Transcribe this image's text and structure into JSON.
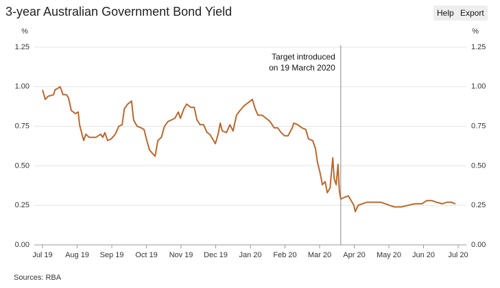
{
  "ui": {
    "buttons": [
      "Help",
      "Export"
    ]
  },
  "chart_data": {
    "type": "line",
    "title": "3-year Australian Government Bond Yield",
    "y_unit": "%",
    "source": "Sources: RBA",
    "xlim": [
      0,
      12
    ],
    "xticks": [
      {
        "value": 0,
        "label": "Jul 19"
      },
      {
        "value": 1,
        "label": "Aug 19"
      },
      {
        "value": 2,
        "label": "Sep 19"
      },
      {
        "value": 3,
        "label": "Oct 19"
      },
      {
        "value": 4,
        "label": "Nov 19"
      },
      {
        "value": 5,
        "label": "Dec 19"
      },
      {
        "value": 6,
        "label": "Jan 20"
      },
      {
        "value": 7,
        "label": "Feb 20"
      },
      {
        "value": 8,
        "label": "Mar 20"
      },
      {
        "value": 9,
        "label": "Apr 20"
      },
      {
        "value": 10,
        "label": "May 20"
      },
      {
        "value": 11,
        "label": "Jun 20"
      },
      {
        "value": 12,
        "label": "Jul 20"
      }
    ],
    "ylim": [
      0,
      1.25
    ],
    "yticks": [
      {
        "value": 0,
        "label": "0.00"
      },
      0.25,
      {
        "value": 0.5,
        "label": "0.50"
      },
      0.75,
      {
        "value": 1,
        "label": "1.00"
      },
      1.25
    ],
    "grid": true,
    "annotations": [
      {
        "text": [
          "Target introduced",
          "on 19 March 2020"
        ],
        "x": 8.61
      }
    ],
    "series": [
      {
        "color": "#b8672e",
        "x": [
          0,
          0.08,
          0.16,
          0.32,
          0.36,
          0.44,
          0.51,
          0.59,
          0.69,
          0.75,
          0.83,
          0.95,
          1.03,
          1.07,
          1.15,
          1.19,
          1.25,
          1.35,
          1.54,
          1.68,
          1.74,
          1.8,
          1.88,
          1.98,
          2.1,
          2.2,
          2.3,
          2.36,
          2.46,
          2.57,
          2.63,
          2.73,
          2.85,
          2.93,
          3.01,
          3.09,
          3.17,
          3.25,
          3.33,
          3.43,
          3.52,
          3.62,
          3.72,
          3.82,
          3.92,
          3.98,
          4.08,
          4.16,
          4.28,
          4.38,
          4.46,
          4.55,
          4.65,
          4.75,
          4.83,
          4.91,
          4.99,
          5.07,
          5.13,
          5.19,
          5.31,
          5.41,
          5.5,
          5.6,
          5.7,
          5.82,
          5.94,
          6.06,
          6.14,
          6.22,
          6.34,
          6.46,
          6.57,
          6.69,
          6.79,
          6.89,
          6.99,
          7.09,
          7.21,
          7.25,
          7.37,
          7.49,
          7.6,
          7.68,
          7.8,
          7.88,
          7.94,
          8.02,
          8.08,
          8.16,
          8.22,
          8.3,
          8.38,
          8.42,
          8.48,
          8.53,
          8.57,
          8.61,
          8.71,
          8.83,
          8.91,
          8.99,
          9.03,
          9.11,
          9.23,
          9.37,
          9.56,
          9.76,
          9.9,
          10.02,
          10.16,
          10.36,
          10.55,
          10.75,
          10.95,
          11.09,
          11.25,
          11.37,
          11.54,
          11.68,
          11.8,
          11.92
        ],
        "values": [
          0.98,
          0.92,
          0.94,
          0.95,
          0.98,
          0.99,
          1.0,
          0.95,
          0.95,
          0.93,
          0.85,
          0.83,
          0.84,
          0.76,
          0.69,
          0.66,
          0.7,
          0.68,
          0.68,
          0.7,
          0.68,
          0.71,
          0.66,
          0.67,
          0.7,
          0.75,
          0.76,
          0.86,
          0.89,
          0.91,
          0.79,
          0.75,
          0.74,
          0.73,
          0.66,
          0.6,
          0.58,
          0.56,
          0.66,
          0.68,
          0.75,
          0.78,
          0.79,
          0.8,
          0.84,
          0.8,
          0.86,
          0.89,
          0.87,
          0.87,
          0.79,
          0.76,
          0.76,
          0.71,
          0.7,
          0.67,
          0.64,
          0.7,
          0.77,
          0.72,
          0.71,
          0.76,
          0.72,
          0.82,
          0.85,
          0.88,
          0.9,
          0.92,
          0.86,
          0.82,
          0.82,
          0.8,
          0.78,
          0.74,
          0.74,
          0.71,
          0.69,
          0.69,
          0.74,
          0.77,
          0.76,
          0.74,
          0.73,
          0.67,
          0.66,
          0.61,
          0.52,
          0.45,
          0.38,
          0.4,
          0.33,
          0.36,
          0.55,
          0.42,
          0.38,
          0.51,
          0.34,
          0.29,
          0.3,
          0.31,
          0.28,
          0.25,
          0.21,
          0.25,
          0.26,
          0.27,
          0.27,
          0.27,
          0.26,
          0.25,
          0.24,
          0.24,
          0.25,
          0.26,
          0.26,
          0.28,
          0.28,
          0.27,
          0.26,
          0.27,
          0.27,
          0.26
        ]
      }
    ]
  }
}
